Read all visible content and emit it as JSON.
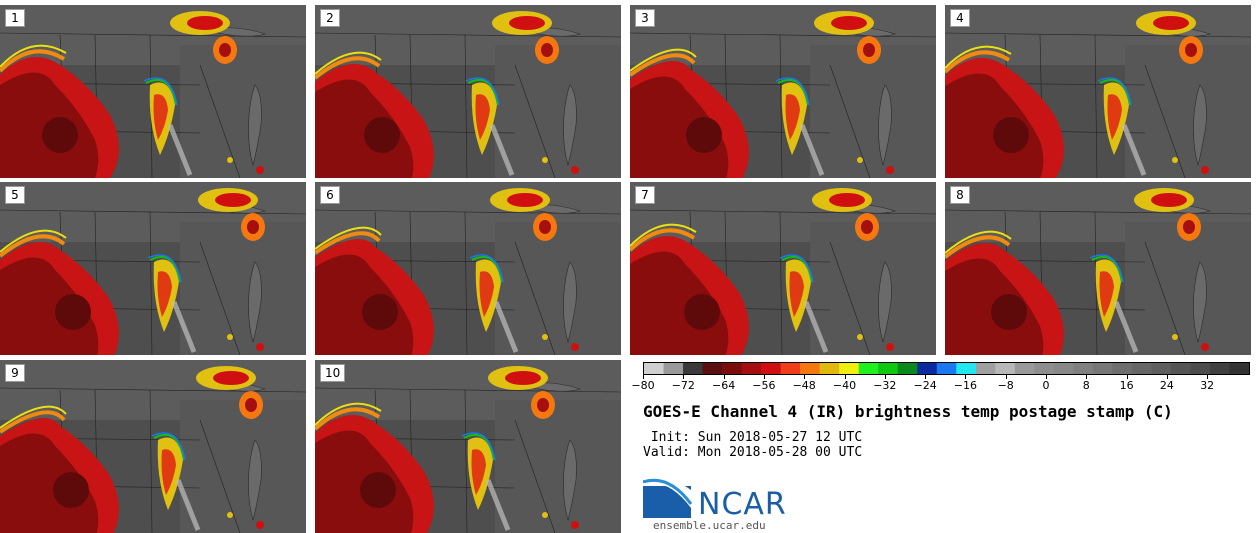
{
  "panels": [
    {
      "label": "1"
    },
    {
      "label": "2"
    },
    {
      "label": "3"
    },
    {
      "label": "4"
    },
    {
      "label": "5"
    },
    {
      "label": "6"
    },
    {
      "label": "7"
    },
    {
      "label": "8"
    },
    {
      "label": "9"
    },
    {
      "label": "10"
    }
  ],
  "colorbar": {
    "ticks": [
      "−80",
      "−72",
      "−64",
      "−56",
      "−48",
      "−40",
      "−32",
      "−24",
      "−16",
      "−8",
      "0",
      "8",
      "16",
      "24",
      "32"
    ],
    "colors": [
      "#cfcfcf",
      "#9a9a9a",
      "#3a3a3a",
      "#5a1010",
      "#7a0c0c",
      "#a50f0f",
      "#d01010",
      "#f03d1a",
      "#f4780f",
      "#e0b810",
      "#f0f010",
      "#20f020",
      "#10c810",
      "#0b8a1c",
      "#0a2aa0",
      "#1a78f0",
      "#20e8f0",
      "#a0a0a0",
      "#b8b8b8",
      "#9a9a9a",
      "#8e8e8e",
      "#888888",
      "#808080",
      "#777777",
      "#6e6e6e",
      "#666666",
      "#5e5e5e",
      "#555555",
      "#4c4c4c",
      "#404040",
      "#333333"
    ]
  },
  "title": "GOES-E Channel 4 (IR) brightness temp postage stamp (C)",
  "init": " Init: Sun 2018-05-27 12 UTC",
  "valid": "Valid: Mon 2018-05-28 00 UTC",
  "logo": {
    "name": "NCAR",
    "url": "ensemble.ucar.edu",
    "brand_color": "#1a5da8"
  }
}
